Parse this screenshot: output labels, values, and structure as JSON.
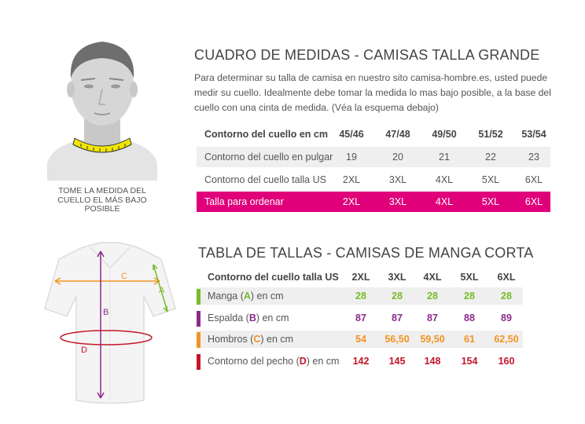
{
  "caption": [
    "TOME LA MEDIDA DEL",
    "CUELLO EL MÁS BAJO",
    "POSIBLE"
  ],
  "section1": {
    "title": "CUADRO DE MEDIDAS - CAMISAS TALLA GRANDE",
    "text": "Para determinar su talla de camisa en nuestro sito camisa-hombre.es, usted puede medir su cuello. Idealmente debe tomar la medida lo mas bajo posible, a la base del cuello con una cinta de medida. (Véa la esquema debajo)",
    "rows": [
      {
        "label": "Contorno del cuello  en cm",
        "values": [
          "45/46",
          "47/48",
          "49/50",
          "51/52",
          "53/54"
        ]
      },
      {
        "label": "Contorno del  cuello en pulgar",
        "values": [
          "19",
          "20",
          "21",
          "22",
          "23"
        ]
      },
      {
        "label": "Contorno del  cuello talla US",
        "values": [
          "2XL",
          "3XL",
          "4XL",
          "5XL",
          "6XL"
        ]
      },
      {
        "label": "Talla para ordenar",
        "values": [
          "2XL",
          "3XL",
          "4XL",
          "5XL",
          "6XL"
        ]
      }
    ]
  },
  "section2": {
    "title": "TABLA DE TALLAS - CAMISAS DE MANGA CORTA",
    "header": {
      "label": "Contorno del cuello talla US",
      "values": [
        "2XL",
        "3XL",
        "4XL",
        "5XL",
        "6XL"
      ]
    },
    "rows": [
      {
        "pre": "Manga (",
        "letter": "A",
        "post": ") en cm",
        "values": [
          "28",
          "28",
          "28",
          "28",
          "28"
        ],
        "color": "#7ab929"
      },
      {
        "pre": "Espalda (",
        "letter": "B",
        "post": ") en cm",
        "values": [
          "87",
          "87",
          "87",
          "88",
          "89"
        ],
        "color": "#8c2a8c"
      },
      {
        "pre": "Hombros (",
        "letter": "C",
        "post": ") en cm",
        "values": [
          "54",
          "56,50",
          "59,50",
          "61",
          "62,50"
        ],
        "color": "#f39322"
      },
      {
        "pre": "Contorno del pecho (",
        "letter": "D",
        "post": ") en cm",
        "values": [
          "142",
          "145",
          "148",
          "154",
          "160"
        ],
        "color": "#c4162a"
      }
    ]
  },
  "shirt_labels": {
    "a": "A",
    "b": "B",
    "c": "C",
    "d": "D"
  },
  "colors": {
    "pink": "#e0017a",
    "green": "#7ab929",
    "purple": "#8c2a8c",
    "orange": "#f39322",
    "red": "#c4162a"
  }
}
